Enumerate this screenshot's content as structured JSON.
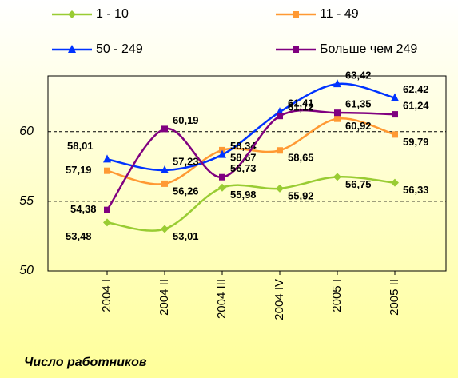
{
  "chart_data": {
    "type": "line",
    "x_label": "Число работников",
    "categories": [
      "2004 I",
      "2004 II",
      "2004 III",
      "2004 IV",
      "2005 I",
      "2005 II"
    ],
    "ylim": [
      50,
      64
    ],
    "yticks": [
      50,
      55,
      60
    ],
    "grid": true,
    "series": [
      {
        "name": "1 - 10",
        "color": "#99cc33",
        "marker": "diamond",
        "values": [
          53.48,
          53.01,
          55.98,
          55.92,
          56.75,
          56.33
        ],
        "value_labels": [
          "53,48",
          "53,01",
          "55,98",
          "55,92",
          "56,75",
          "56,33"
        ]
      },
      {
        "name": "11 - 49",
        "color": "#ff9933",
        "marker": "square",
        "values": [
          57.19,
          56.26,
          58.67,
          58.65,
          60.92,
          59.79
        ],
        "value_labels": [
          "57,19",
          "56,26",
          "58,67",
          "58,65",
          "60,92",
          "59,79"
        ]
      },
      {
        "name": "50 - 249",
        "color": "#0033ff",
        "marker": "triangle",
        "values": [
          58.01,
          57.23,
          58.34,
          61.41,
          63.42,
          62.42
        ],
        "value_labels": [
          "58,01",
          "57,23",
          "58,34",
          "61,41",
          "63,42",
          "62,42"
        ]
      },
      {
        "name": "Больше чем 249",
        "color": "#800080",
        "marker": "square",
        "values": [
          54.38,
          60.19,
          56.73,
          61.12,
          61.35,
          61.24
        ],
        "value_labels": [
          "54,38",
          "60,19",
          "56,73",
          "61,12",
          "61,35",
          "61,24"
        ]
      }
    ]
  }
}
